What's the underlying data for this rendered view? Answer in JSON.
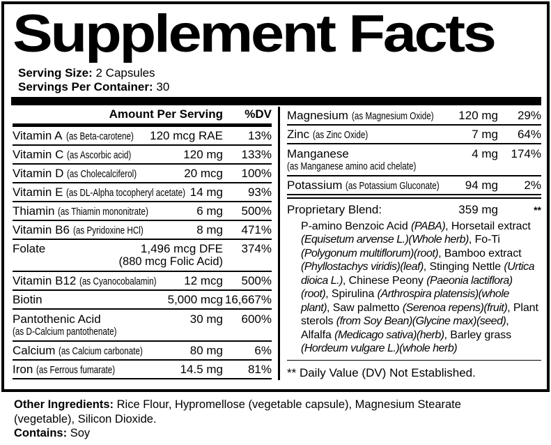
{
  "title": "Supplement Facts",
  "serving": {
    "size_label": "Serving Size:",
    "size_value": "2 Capsules",
    "container_label": "Servings Per Container:",
    "container_value": "30"
  },
  "left_table": {
    "header": {
      "amount": "Amount Per Serving",
      "dv": "%DV"
    },
    "rows": [
      {
        "name": "Vitamin A",
        "as": "(as Beta-carotene)",
        "amount": "120 mcg RAE",
        "dv": "13%"
      },
      {
        "name": "Vitamin C",
        "as": "(as Ascorbic acid)",
        "amount": "120 mg",
        "dv": "133%"
      },
      {
        "name": "Vitamin D",
        "as": "(as Cholecalciferol)",
        "amount": "20 mcg",
        "dv": "100%"
      },
      {
        "name": "Vitamin E",
        "as": "(as DL-Alpha tocopheryl acetate)",
        "amount": "14 mg",
        "dv": "93%"
      },
      {
        "name": "Thiamin",
        "as": "(as Thiamin mononitrate)",
        "amount": "6 mg",
        "dv": "500%"
      },
      {
        "name": "Vitamin B6",
        "as": "(as Pyridoxine HCl)",
        "amount": "8 mg",
        "dv": "471%"
      },
      {
        "name": "Folate",
        "amount": "1,496 mcg DFE",
        "dv": "374%",
        "amount2": "(880 mcg Folic Acid)"
      },
      {
        "name": "Vitamin B12",
        "as": "(as Cyanocobalamin)",
        "amount": "12 mcg",
        "dv": "500%"
      },
      {
        "name": "Biotin",
        "amount": "5,000 mcg",
        "dv": "16,667%"
      },
      {
        "name": "Pantothenic Acid",
        "name2": "(as D-Calcium pantothenate)",
        "amount": "30 mg",
        "dv": "600%"
      },
      {
        "name": "Calcium",
        "as": "(as Calcium carbonate)",
        "amount": "80 mg",
        "dv": "6%"
      },
      {
        "name": "Iron",
        "as": "(as Ferrous fumarate)",
        "amount": "14.5 mg",
        "dv": "81%"
      }
    ]
  },
  "right_table": {
    "rows": [
      {
        "name": "Magnesium",
        "as": "(as Magnesium Oxide)",
        "amount": "120 mg",
        "dv": "29%"
      },
      {
        "name": "Zinc",
        "as": "(as Zinc Oxide)",
        "amount": "7 mg",
        "dv": "64%"
      },
      {
        "name": "Manganese",
        "name2": "(as Manganese amino acid chelate)",
        "amount": "4 mg",
        "dv": "174%"
      },
      {
        "name": "Potassium",
        "as": "(as Potassium Gluconate)",
        "amount": "94 mg",
        "dv": "2%"
      }
    ]
  },
  "blend": {
    "label": "Proprietary Blend:",
    "amount": "359 mg",
    "dv": "**",
    "segments": [
      {
        "t": "P-amino Benzoic Acid ",
        "i": false
      },
      {
        "t": "(PABA)",
        "i": true
      },
      {
        "t": ", Horsetail extract ",
        "i": false
      },
      {
        "t": "(Equisetum arvense L.)(Whole herb)",
        "i": true
      },
      {
        "t": ", Fo-Ti ",
        "i": false
      },
      {
        "t": "(Polygonum multiflorum)(root)",
        "i": true
      },
      {
        "t": ", Bamboo extract ",
        "i": false
      },
      {
        "t": "(Phyllostachys viridis)(leaf)",
        "i": true
      },
      {
        "t": ", Stinging Nettle ",
        "i": false
      },
      {
        "t": "(Urtica dioica L.)",
        "i": true
      },
      {
        "t": ", Chinese Peony ",
        "i": false
      },
      {
        "t": "(Paeonia lactiflora)(root)",
        "i": true
      },
      {
        "t": ", Spirulina ",
        "i": false
      },
      {
        "t": "(Arthrospira platensis)(whole plant)",
        "i": true
      },
      {
        "t": ", Saw palmetto ",
        "i": false
      },
      {
        "t": "(Serenoa repens)(fruit)",
        "i": true
      },
      {
        "t": ", Plant sterols ",
        "i": false
      },
      {
        "t": "(from Soy Bean)(Glycine max)(seed)",
        "i": true
      },
      {
        "t": ", Alfalfa ",
        "i": false
      },
      {
        "t": "(Medicago sativa)(herb)",
        "i": true
      },
      {
        "t": ", Barley grass ",
        "i": false
      },
      {
        "t": "(Hordeum vulgare L.)(whole herb)",
        "i": true
      }
    ]
  },
  "footnote": "** Daily Value (DV) Not Established.",
  "other": {
    "label": "Other Ingredients:",
    "value": "Rice Flour, Hypromellose (vegetable capsule), Magnesium Stearate (vegetable), Silicon Dioxide.",
    "contains_label": "Contains:",
    "contains_value": "Soy"
  },
  "colors": {
    "ink": "#000000",
    "paper": "#ffffff"
  }
}
